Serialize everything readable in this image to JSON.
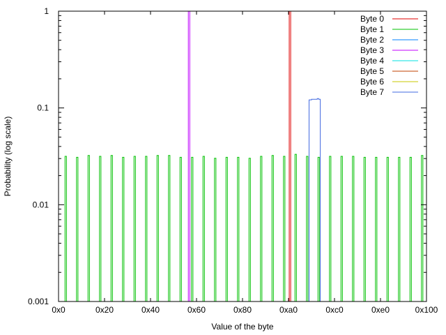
{
  "chart_data": {
    "type": "line",
    "title": "",
    "xlabel": "Value of the byte",
    "ylabel": "Probability (log scale)",
    "xlim": [
      0,
      256
    ],
    "ylim": [
      0.001,
      1
    ],
    "y_scale": "log",
    "grid": false,
    "legend_position": "top-right",
    "x_ticks": [
      {
        "value": 0,
        "label": "0x0"
      },
      {
        "value": 32,
        "label": "0x20"
      },
      {
        "value": 64,
        "label": "0x40"
      },
      {
        "value": 96,
        "label": "0x60"
      },
      {
        "value": 128,
        "label": "0x80"
      },
      {
        "value": 160,
        "label": "0xa0"
      },
      {
        "value": 192,
        "label": "0xc0"
      },
      {
        "value": 224,
        "label": "0xe0"
      },
      {
        "value": 256,
        "label": "0x100"
      }
    ],
    "y_ticks": [
      {
        "value": 1,
        "label": "1"
      },
      {
        "value": 0.1,
        "label": "0.1"
      },
      {
        "value": 0.01,
        "label": "0.01"
      },
      {
        "value": 0.001,
        "label": "0.001"
      }
    ],
    "series": [
      {
        "name": "Byte 0",
        "color": "#e00000",
        "steps": [
          [
            160.5,
            161.5,
            1
          ]
        ]
      },
      {
        "name": "Byte 1",
        "color": "#00c000",
        "pulse_width": 1,
        "pulses": [
          [
            5,
            0.0316
          ],
          [
            13,
            0.0309
          ],
          [
            21,
            0.0323
          ],
          [
            29,
            0.0316
          ],
          [
            37,
            0.0323
          ],
          [
            45,
            0.0309
          ],
          [
            53,
            0.0316
          ],
          [
            61,
            0.0316
          ],
          [
            69,
            0.0323
          ],
          [
            77,
            0.0323
          ],
          [
            85,
            0.0309
          ],
          [
            93,
            0.0309
          ],
          [
            101,
            0.0316
          ],
          [
            109,
            0.0302
          ],
          [
            117,
            0.0309
          ],
          [
            125,
            0.0309
          ],
          [
            133,
            0.0302
          ],
          [
            141,
            0.0316
          ],
          [
            149,
            0.0323
          ],
          [
            157,
            0.0316
          ],
          [
            165,
            0.0332
          ],
          [
            173,
            0.0316
          ],
          [
            181,
            0.0309
          ],
          [
            189,
            0.0316
          ],
          [
            197,
            0.0316
          ],
          [
            205,
            0.0316
          ],
          [
            213,
            0.0309
          ],
          [
            221,
            0.0309
          ],
          [
            229,
            0.0309
          ],
          [
            237,
            0.0309
          ],
          [
            245,
            0.0309
          ],
          [
            253,
            0.0323
          ]
        ]
      },
      {
        "name": "Byte 2",
        "color": "#0080ff",
        "steps": []
      },
      {
        "name": "Byte 3",
        "color": "#c000ff",
        "steps": [
          [
            90.3,
            91.3,
            1
          ]
        ]
      },
      {
        "name": "Byte 4",
        "color": "#00e0e0",
        "steps": []
      },
      {
        "name": "Byte 5",
        "color": "#c04000",
        "steps": []
      },
      {
        "name": "Byte 6",
        "color": "#c8c800",
        "steps": []
      },
      {
        "name": "Byte 7",
        "color": "#4169e1",
        "steps": [
          [
            174.3,
            176,
            0.121
          ],
          [
            176,
            180,
            0.123
          ],
          [
            180,
            181,
            0.125
          ],
          [
            181,
            182.1,
            0.123
          ]
        ]
      }
    ]
  }
}
